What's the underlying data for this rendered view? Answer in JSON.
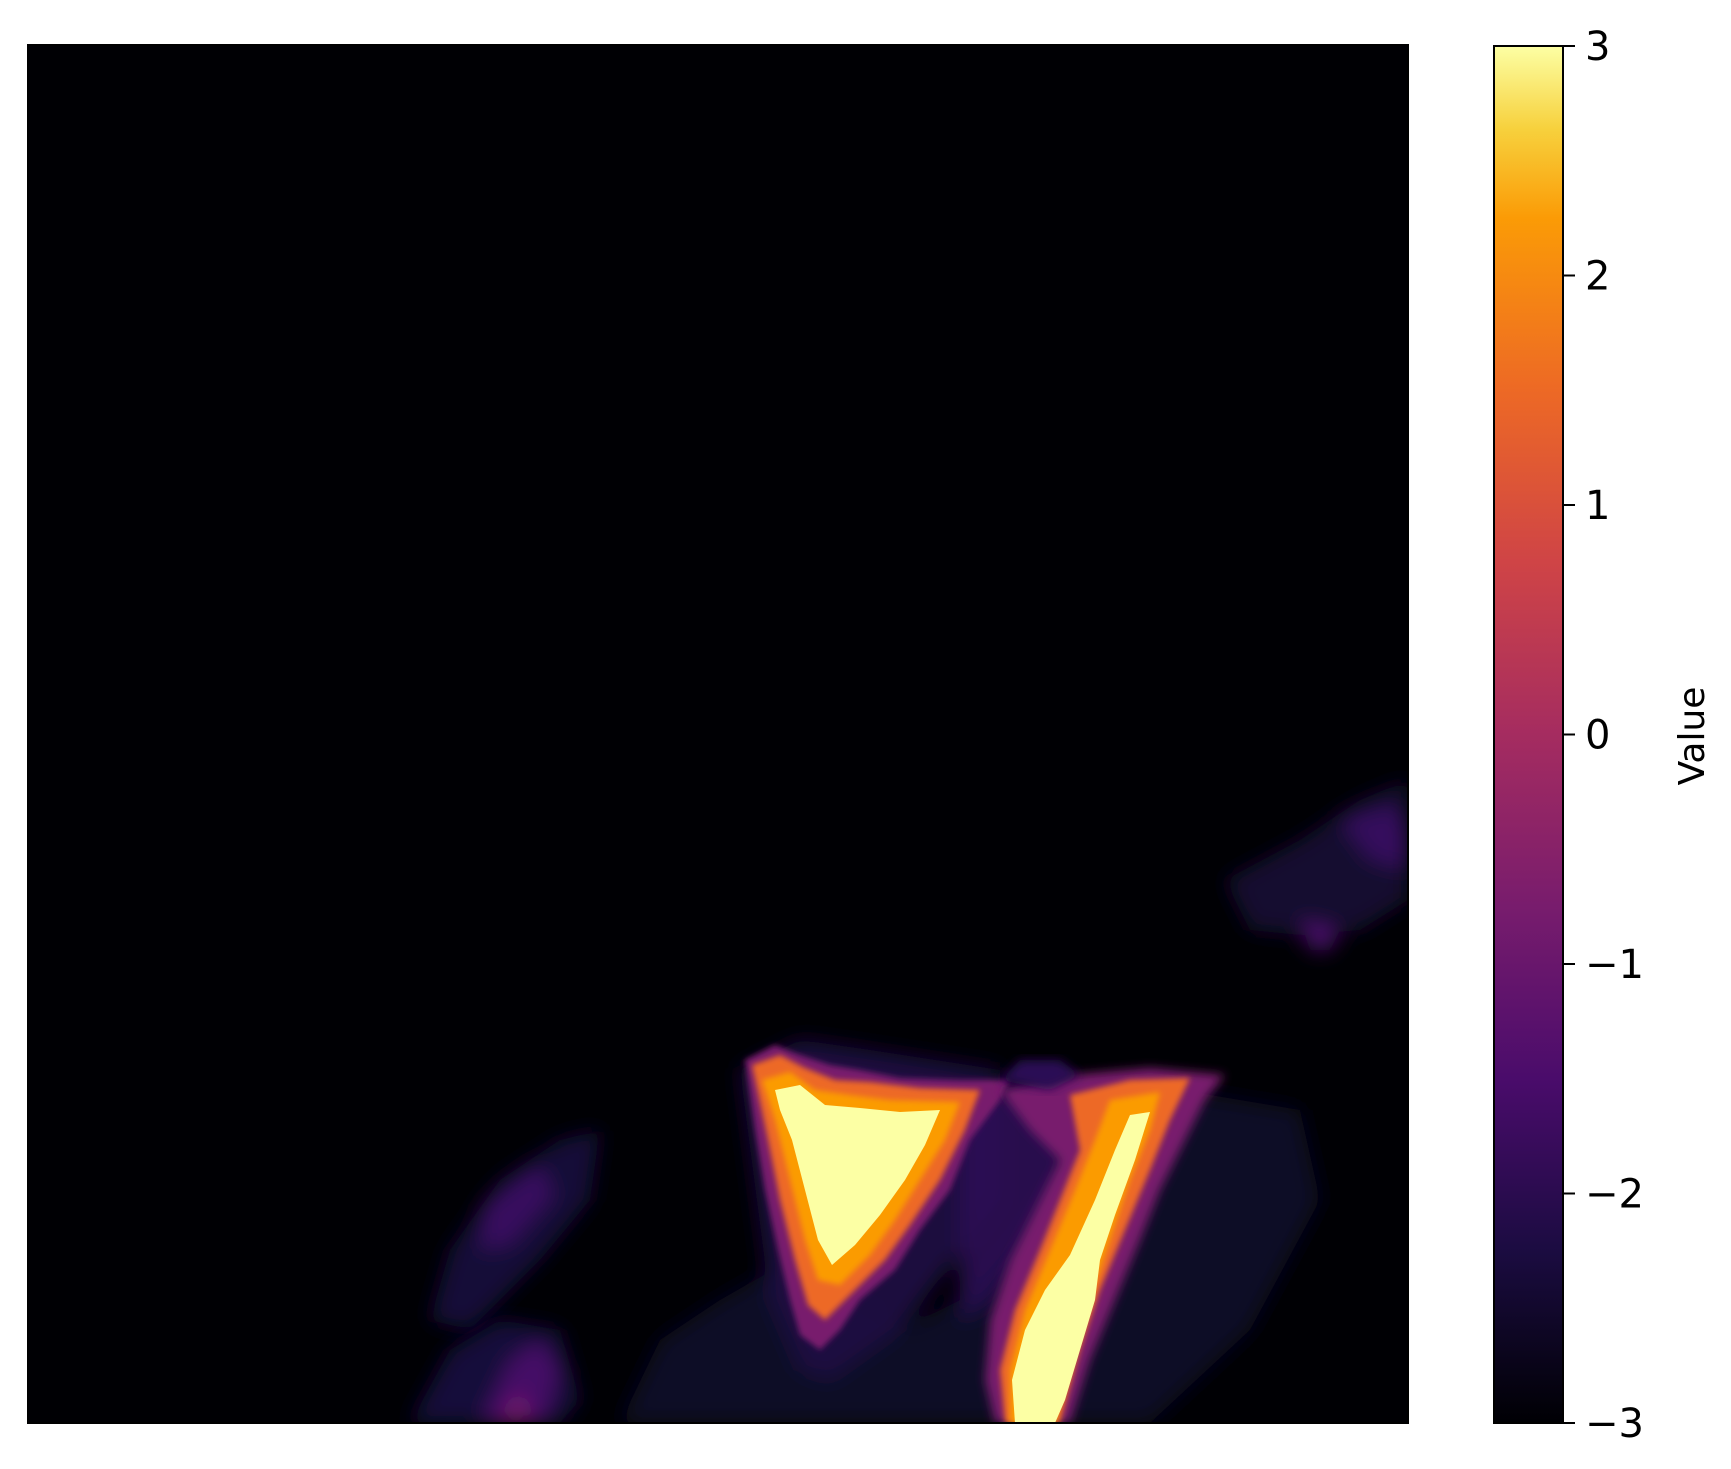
{
  "chart_data": {
    "type": "heatmap",
    "title": "",
    "xlabel": "",
    "ylabel": "",
    "axes_visible": false,
    "colormap": "inferno",
    "colorbar": {
      "label": "Value",
      "vmin": -3,
      "vmax": 3,
      "ticks": [
        {
          "value": 3,
          "label": "3"
        },
        {
          "value": 2,
          "label": "2"
        },
        {
          "value": 1,
          "label": "1"
        },
        {
          "value": 0,
          "label": "0"
        },
        {
          "value": -1,
          "label": "−1"
        },
        {
          "value": -2,
          "label": "−2"
        },
        {
          "value": -3,
          "label": "−3"
        }
      ],
      "placement": "right"
    },
    "background_value": -3,
    "features": [
      {
        "name": "left-ridge",
        "peak_value": -1.4
      },
      {
        "name": "upper-right-patch",
        "peak_value": -1.8
      },
      {
        "name": "triangular-massif",
        "peak_value": 3
      },
      {
        "name": "diagonal-ridge",
        "peak_value": 3
      },
      {
        "name": "lower-left-patch",
        "peak_value": -1.0
      }
    ]
  }
}
